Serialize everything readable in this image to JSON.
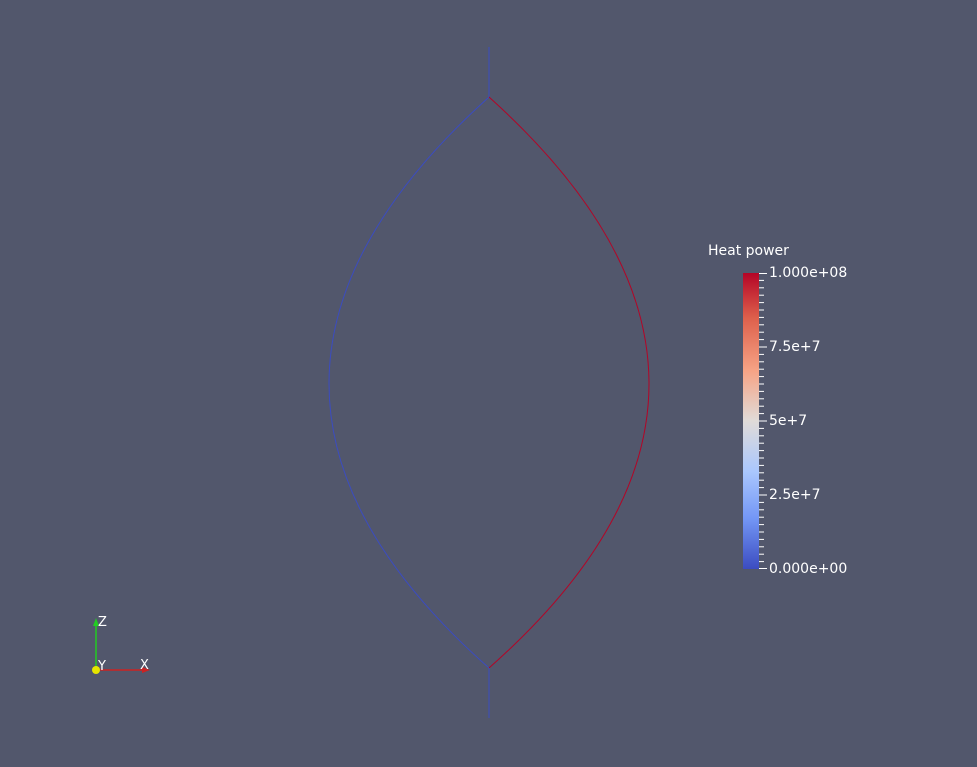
{
  "colorbar": {
    "title": "Heat power",
    "labels": [
      "1.000e+08",
      "7.5e+7",
      "5e+7",
      "2.5e+7",
      "0.000e+00"
    ],
    "range": [
      0,
      100000000
    ],
    "colormap": "cool-to-warm",
    "colors": {
      "low": "#3b4cc0",
      "mid": "#e0dbd8",
      "high": "#b40426"
    }
  },
  "scene": {
    "background": "#52576c",
    "left_arc_color": "#3b4cc0",
    "right_arc_color": "#b40426"
  },
  "axes": {
    "x_label": "X",
    "y_label": "Y",
    "z_label": "Z",
    "x_color": "#cc2222",
    "z_color": "#22cc22",
    "y_color": "#e6e600"
  }
}
